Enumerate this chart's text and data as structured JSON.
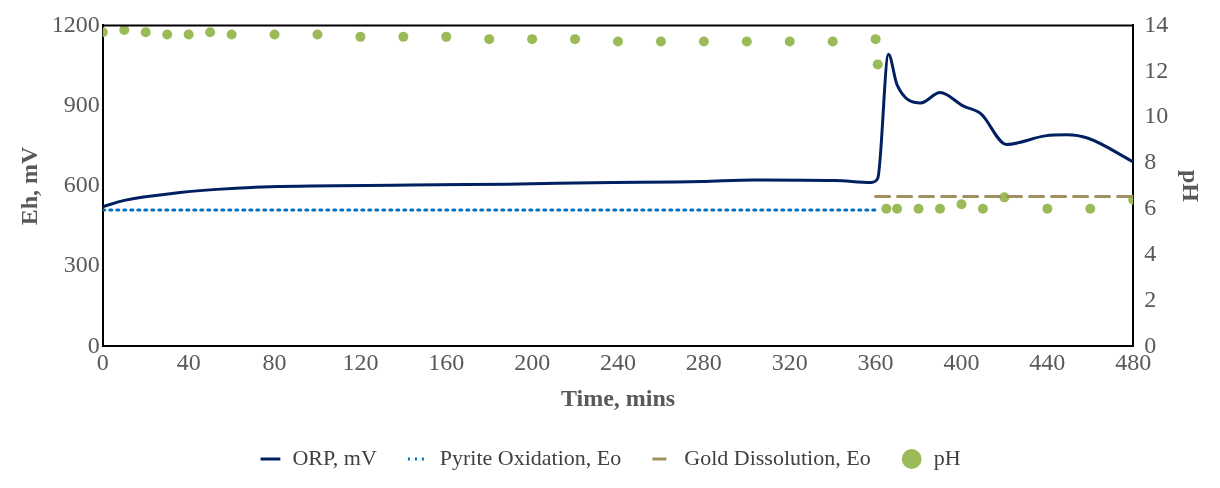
{
  "chart_data": {
    "type": "line",
    "xlabel": "Time, mins",
    "ylabel": "Eh, mV",
    "y2label": "pH",
    "xlim": [
      0,
      480
    ],
    "xticks": [
      0,
      40,
      80,
      120,
      160,
      200,
      240,
      280,
      320,
      360,
      400,
      440,
      480
    ],
    "ylim": [
      0,
      1200
    ],
    "yticks": [
      0,
      300,
      600,
      900,
      1200
    ],
    "y2lim": [
      0,
      14
    ],
    "y2ticks": [
      0,
      2,
      4,
      6,
      8,
      10,
      12,
      14
    ],
    "grid": false,
    "legend": "bottom",
    "series": [
      {
        "name": "ORP, mV",
        "color": "#002060",
        "line_style": "solid",
        "marker": "none",
        "x": [
          0,
          10,
          36,
          53,
          78,
          144,
          194,
          229,
          279,
          303,
          341,
          358,
          361,
          366,
          370,
          381,
          390,
          401,
          409,
          421,
          439,
          449,
          459,
          480
        ],
        "values": [
          522,
          546,
          575,
          587,
          597,
          603,
          607,
          612,
          616,
          622,
          620,
          613,
          628,
          1092,
          978,
          910,
          949,
          898,
          870,
          755,
          787,
          791,
          778,
          690
        ]
      },
      {
        "name": "Pyrite Oxidation, Eo",
        "color": "#0070c0",
        "line_style": "dotted",
        "marker": "none",
        "x": [
          0,
          360
        ],
        "values": [
          510,
          510
        ]
      },
      {
        "name": "Gold Dissolution, Eo",
        "color": "#a09060",
        "line_style": "dashed",
        "marker": "none",
        "x": [
          360,
          480
        ],
        "values": [
          560,
          560
        ]
      },
      {
        "name": "pH",
        "type": "scatter",
        "axis": "y2",
        "color": "#9bbb59",
        "marker": "circle",
        "x": [
          0,
          10,
          20,
          30,
          40,
          50,
          60,
          80,
          100,
          120,
          140,
          160,
          180,
          200,
          220,
          240,
          260,
          280,
          300,
          320,
          340,
          360,
          361,
          365,
          370,
          380,
          390,
          400,
          410,
          420,
          440,
          460,
          480
        ],
        "values": [
          13.7,
          13.8,
          13.7,
          13.6,
          13.6,
          13.7,
          13.6,
          13.6,
          13.6,
          13.5,
          13.5,
          13.5,
          13.4,
          13.4,
          13.4,
          13.3,
          13.3,
          13.3,
          13.3,
          13.3,
          13.3,
          13.4,
          12.3,
          6.0,
          6.0,
          6.0,
          6.0,
          6.2,
          6.0,
          6.5,
          6.0,
          6.0,
          6.4
        ]
      }
    ]
  }
}
